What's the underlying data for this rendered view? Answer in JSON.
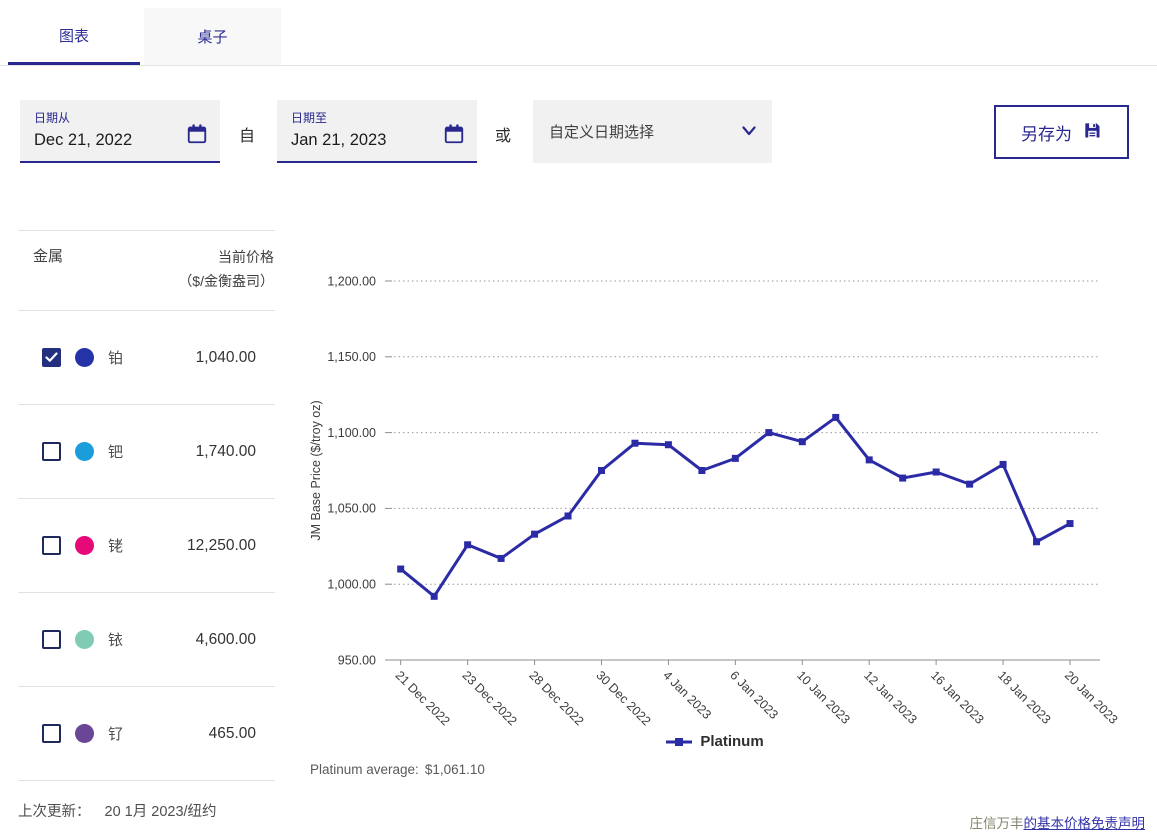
{
  "colors": {
    "accent": "#28288f",
    "chart_line": "#2B2BA6",
    "grid": "#9a9a9a"
  },
  "tabs": [
    {
      "label": "图表",
      "active": true
    },
    {
      "label": "桌子",
      "active": false
    }
  ],
  "filters": {
    "date_from": {
      "label": "日期从",
      "value": "Dec 21, 2022"
    },
    "between_text": "自",
    "date_to": {
      "label": "日期至",
      "value": "Jan 21, 2023"
    },
    "or_text": "或",
    "preset_dropdown": {
      "value": "自定义日期选择"
    },
    "save_button": {
      "label": "另存为"
    }
  },
  "metals_table": {
    "header_metal": "金属",
    "header_price_line1": "当前价格",
    "header_price_line2": "（$/金衡盎司）",
    "rows": [
      {
        "name": "铂",
        "price": "1,040.00",
        "checked": true,
        "color": "#2433a8"
      },
      {
        "name": "钯",
        "price": "1,740.00",
        "checked": false,
        "color": "#1b9ddc"
      },
      {
        "name": "铑",
        "price": "12,250.00",
        "checked": false,
        "color": "#e60a78"
      },
      {
        "name": "铱",
        "price": "4,600.00",
        "checked": false,
        "color": "#7fcbb4"
      },
      {
        "name": "钌",
        "price": "465.00",
        "checked": false,
        "color": "#6a4796"
      }
    ]
  },
  "chart_data": {
    "type": "line",
    "title": "",
    "xlabel": "",
    "ylabel": "JM Base Price ($/troy oz)",
    "ylim": [
      950,
      1200
    ],
    "ytick_step": 50,
    "grid": "horizontal-dotted",
    "legend_position": "bottom-center",
    "x": [
      "21 Dec 2022",
      "22 Dec 2022",
      "23 Dec 2022",
      "27 Dec 2022",
      "28 Dec 2022",
      "29 Dec 2022",
      "30 Dec 2022",
      "3 Jan 2023",
      "4 Jan 2023",
      "5 Jan 2023",
      "6 Jan 2023",
      "9 Jan 2023",
      "10 Jan 2023",
      "11 Jan 2023",
      "12 Jan 2023",
      "13 Jan 2023",
      "16 Jan 2023",
      "17 Jan 2023",
      "18 Jan 2023",
      "19 Jan 2023",
      "20 Jan 2023"
    ],
    "xtick_every": 2,
    "series": [
      {
        "name": "Platinum",
        "color": "#2B2BA6",
        "values": [
          1010,
          992,
          1026,
          1017,
          1033,
          1045,
          1075,
          1093,
          1092,
          1075,
          1083,
          1100,
          1094,
          1110,
          1082,
          1070,
          1074,
          1066,
          1079,
          1028,
          1040
        ]
      }
    ],
    "average_label": "Platinum average:",
    "average_value": "$1,061.10"
  },
  "footer": {
    "last_updated_label": "上次更新：",
    "last_updated_value": "20 1月 2023/纽约",
    "disclaimer_prefix": "庄信万丰",
    "disclaimer_link": "的基本价格免责声明"
  }
}
